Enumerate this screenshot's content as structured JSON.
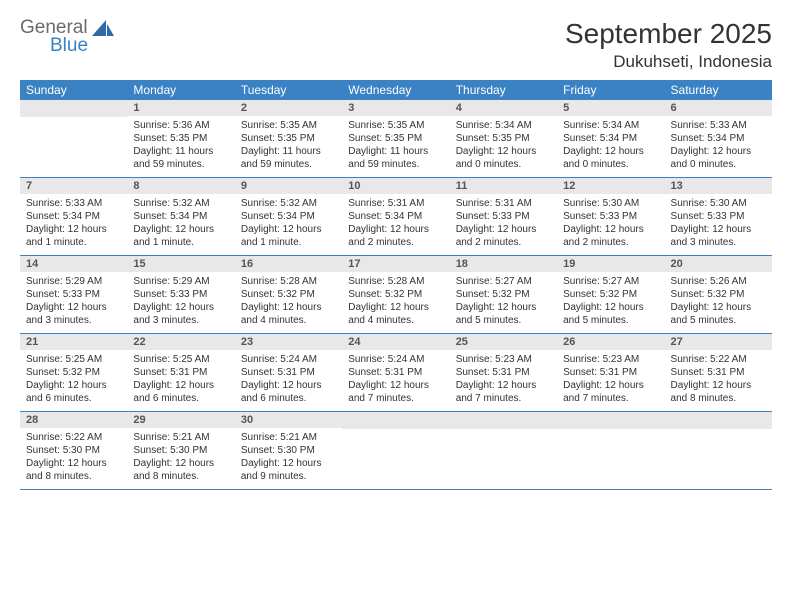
{
  "logo": {
    "general": "General",
    "blue": "Blue",
    "icon_color": "#2f6aa8"
  },
  "title": {
    "month": "September 2025",
    "location": "Dukuhseti, Indonesia"
  },
  "colors": {
    "header_bg": "#3a82c4",
    "daynum_bg": "#e8e8e8",
    "border": "#3a82c4"
  },
  "dayHeaders": [
    "Sunday",
    "Monday",
    "Tuesday",
    "Wednesday",
    "Thursday",
    "Friday",
    "Saturday"
  ],
  "weeks": [
    [
      {
        "num": "",
        "sunrise": "",
        "sunset": "",
        "daylight": ""
      },
      {
        "num": "1",
        "sunrise": "Sunrise: 5:36 AM",
        "sunset": "Sunset: 5:35 PM",
        "daylight": "Daylight: 11 hours and 59 minutes."
      },
      {
        "num": "2",
        "sunrise": "Sunrise: 5:35 AM",
        "sunset": "Sunset: 5:35 PM",
        "daylight": "Daylight: 11 hours and 59 minutes."
      },
      {
        "num": "3",
        "sunrise": "Sunrise: 5:35 AM",
        "sunset": "Sunset: 5:35 PM",
        "daylight": "Daylight: 11 hours and 59 minutes."
      },
      {
        "num": "4",
        "sunrise": "Sunrise: 5:34 AM",
        "sunset": "Sunset: 5:35 PM",
        "daylight": "Daylight: 12 hours and 0 minutes."
      },
      {
        "num": "5",
        "sunrise": "Sunrise: 5:34 AM",
        "sunset": "Sunset: 5:34 PM",
        "daylight": "Daylight: 12 hours and 0 minutes."
      },
      {
        "num": "6",
        "sunrise": "Sunrise: 5:33 AM",
        "sunset": "Sunset: 5:34 PM",
        "daylight": "Daylight: 12 hours and 0 minutes."
      }
    ],
    [
      {
        "num": "7",
        "sunrise": "Sunrise: 5:33 AM",
        "sunset": "Sunset: 5:34 PM",
        "daylight": "Daylight: 12 hours and 1 minute."
      },
      {
        "num": "8",
        "sunrise": "Sunrise: 5:32 AM",
        "sunset": "Sunset: 5:34 PM",
        "daylight": "Daylight: 12 hours and 1 minute."
      },
      {
        "num": "9",
        "sunrise": "Sunrise: 5:32 AM",
        "sunset": "Sunset: 5:34 PM",
        "daylight": "Daylight: 12 hours and 1 minute."
      },
      {
        "num": "10",
        "sunrise": "Sunrise: 5:31 AM",
        "sunset": "Sunset: 5:34 PM",
        "daylight": "Daylight: 12 hours and 2 minutes."
      },
      {
        "num": "11",
        "sunrise": "Sunrise: 5:31 AM",
        "sunset": "Sunset: 5:33 PM",
        "daylight": "Daylight: 12 hours and 2 minutes."
      },
      {
        "num": "12",
        "sunrise": "Sunrise: 5:30 AM",
        "sunset": "Sunset: 5:33 PM",
        "daylight": "Daylight: 12 hours and 2 minutes."
      },
      {
        "num": "13",
        "sunrise": "Sunrise: 5:30 AM",
        "sunset": "Sunset: 5:33 PM",
        "daylight": "Daylight: 12 hours and 3 minutes."
      }
    ],
    [
      {
        "num": "14",
        "sunrise": "Sunrise: 5:29 AM",
        "sunset": "Sunset: 5:33 PM",
        "daylight": "Daylight: 12 hours and 3 minutes."
      },
      {
        "num": "15",
        "sunrise": "Sunrise: 5:29 AM",
        "sunset": "Sunset: 5:33 PM",
        "daylight": "Daylight: 12 hours and 3 minutes."
      },
      {
        "num": "16",
        "sunrise": "Sunrise: 5:28 AM",
        "sunset": "Sunset: 5:32 PM",
        "daylight": "Daylight: 12 hours and 4 minutes."
      },
      {
        "num": "17",
        "sunrise": "Sunrise: 5:28 AM",
        "sunset": "Sunset: 5:32 PM",
        "daylight": "Daylight: 12 hours and 4 minutes."
      },
      {
        "num": "18",
        "sunrise": "Sunrise: 5:27 AM",
        "sunset": "Sunset: 5:32 PM",
        "daylight": "Daylight: 12 hours and 5 minutes."
      },
      {
        "num": "19",
        "sunrise": "Sunrise: 5:27 AM",
        "sunset": "Sunset: 5:32 PM",
        "daylight": "Daylight: 12 hours and 5 minutes."
      },
      {
        "num": "20",
        "sunrise": "Sunrise: 5:26 AM",
        "sunset": "Sunset: 5:32 PM",
        "daylight": "Daylight: 12 hours and 5 minutes."
      }
    ],
    [
      {
        "num": "21",
        "sunrise": "Sunrise: 5:25 AM",
        "sunset": "Sunset: 5:32 PM",
        "daylight": "Daylight: 12 hours and 6 minutes."
      },
      {
        "num": "22",
        "sunrise": "Sunrise: 5:25 AM",
        "sunset": "Sunset: 5:31 PM",
        "daylight": "Daylight: 12 hours and 6 minutes."
      },
      {
        "num": "23",
        "sunrise": "Sunrise: 5:24 AM",
        "sunset": "Sunset: 5:31 PM",
        "daylight": "Daylight: 12 hours and 6 minutes."
      },
      {
        "num": "24",
        "sunrise": "Sunrise: 5:24 AM",
        "sunset": "Sunset: 5:31 PM",
        "daylight": "Daylight: 12 hours and 7 minutes."
      },
      {
        "num": "25",
        "sunrise": "Sunrise: 5:23 AM",
        "sunset": "Sunset: 5:31 PM",
        "daylight": "Daylight: 12 hours and 7 minutes."
      },
      {
        "num": "26",
        "sunrise": "Sunrise: 5:23 AM",
        "sunset": "Sunset: 5:31 PM",
        "daylight": "Daylight: 12 hours and 7 minutes."
      },
      {
        "num": "27",
        "sunrise": "Sunrise: 5:22 AM",
        "sunset": "Sunset: 5:31 PM",
        "daylight": "Daylight: 12 hours and 8 minutes."
      }
    ],
    [
      {
        "num": "28",
        "sunrise": "Sunrise: 5:22 AM",
        "sunset": "Sunset: 5:30 PM",
        "daylight": "Daylight: 12 hours and 8 minutes."
      },
      {
        "num": "29",
        "sunrise": "Sunrise: 5:21 AM",
        "sunset": "Sunset: 5:30 PM",
        "daylight": "Daylight: 12 hours and 8 minutes."
      },
      {
        "num": "30",
        "sunrise": "Sunrise: 5:21 AM",
        "sunset": "Sunset: 5:30 PM",
        "daylight": "Daylight: 12 hours and 9 minutes."
      },
      {
        "num": "",
        "sunrise": "",
        "sunset": "",
        "daylight": ""
      },
      {
        "num": "",
        "sunrise": "",
        "sunset": "",
        "daylight": ""
      },
      {
        "num": "",
        "sunrise": "",
        "sunset": "",
        "daylight": ""
      },
      {
        "num": "",
        "sunrise": "",
        "sunset": "",
        "daylight": ""
      }
    ]
  ]
}
